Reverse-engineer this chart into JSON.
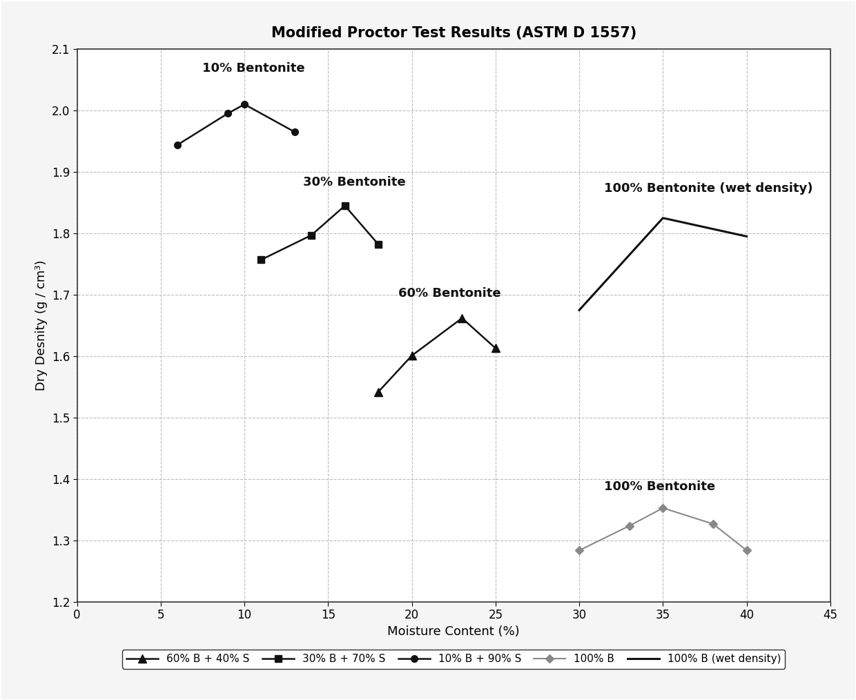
{
  "title": "Modified Proctor Test Results (ASTM D 1557)",
  "xlabel": "Moisture Content (%)",
  "ylabel": "Dry Desnity (g / cm³)",
  "xlim": [
    0,
    45
  ],
  "ylim": [
    1.2,
    2.1
  ],
  "xticks": [
    0,
    5,
    10,
    15,
    20,
    25,
    30,
    35,
    40,
    45
  ],
  "yticks": [
    1.2,
    1.3,
    1.4,
    1.5,
    1.6,
    1.7,
    1.8,
    1.9,
    2.0,
    2.1
  ],
  "series_10pct": {
    "x": [
      6,
      9,
      10,
      13
    ],
    "y": [
      1.944,
      1.995,
      2.01,
      1.965
    ],
    "label": "10% B + 90% S",
    "color": "#111111",
    "marker": "o",
    "markersize": 7,
    "linewidth": 1.8,
    "annotation": "10% Bentonite",
    "ann_x": 7.5,
    "ann_y": 2.058
  },
  "series_30pct": {
    "x": [
      11,
      14,
      16,
      18
    ],
    "y": [
      1.757,
      1.797,
      1.845,
      1.782
    ],
    "label": "30% B + 70% S",
    "color": "#111111",
    "marker": "s",
    "markersize": 7,
    "linewidth": 1.8,
    "annotation": "30% Bentonite",
    "ann_x": 13.5,
    "ann_y": 1.873
  },
  "series_60pct": {
    "x": [
      18,
      20,
      23,
      25
    ],
    "y": [
      1.542,
      1.601,
      1.662,
      1.613
    ],
    "label": "60% B + 40% S",
    "color": "#111111",
    "marker": "^",
    "markersize": 8,
    "linewidth": 1.8,
    "annotation": "60% Bentonite",
    "ann_x": 19.2,
    "ann_y": 1.692
  },
  "series_100pct_dry": {
    "x": [
      30,
      33,
      35,
      38,
      40
    ],
    "y": [
      1.284,
      1.324,
      1.353,
      1.327,
      1.284
    ],
    "label": "100% B",
    "color": "#888888",
    "marker": "D",
    "markersize": 6,
    "linewidth": 1.5,
    "annotation": "100% Bentonite",
    "ann_x": 31.5,
    "ann_y": 1.378
  },
  "series_100pct_wet": {
    "x": [
      30,
      35,
      40
    ],
    "y": [
      1.675,
      1.825,
      1.795
    ],
    "label": "100% B (wet density)",
    "color": "#111111",
    "linewidth": 2.2,
    "annotation": "100% Bentonite (wet density)",
    "ann_x": 31.5,
    "ann_y": 1.863
  },
  "bg_color": "#f5f5f5",
  "plot_bg_color": "#ffffff",
  "grid_color": "#bbbbbb",
  "title_fontsize": 15,
  "label_fontsize": 13,
  "tick_fontsize": 12,
  "legend_fontsize": 11,
  "ann_fontsize": 13
}
